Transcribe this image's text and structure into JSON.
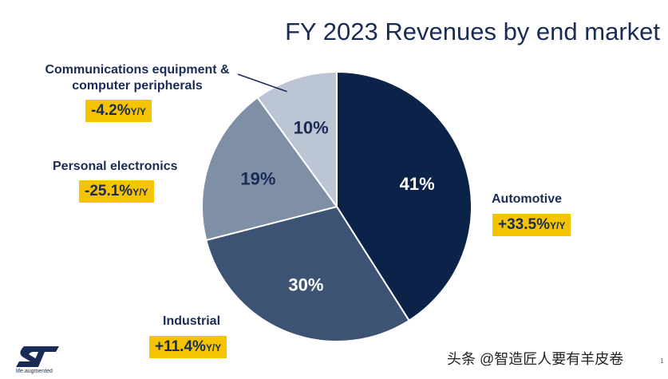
{
  "title": "FY 2023 Revenues by end market",
  "colors": {
    "automotive": "#0b2349",
    "industrial": "#3c5374",
    "personal": "#7f8fa6",
    "comm": "#bcc5d3",
    "badge": "#f5c400",
    "text": "#1a2b55"
  },
  "chart_data": {
    "type": "pie",
    "slices": [
      {
        "name": "Automotive",
        "value": 41,
        "label": "41%",
        "change": "+33.5%",
        "change_unit": "Y/Y"
      },
      {
        "name": "Industrial",
        "value": 30,
        "label": "30%",
        "change": "+11.4%",
        "change_unit": "Y/Y"
      },
      {
        "name": "Personal electronics",
        "value": 19,
        "label": "19%",
        "change": "-25.1%",
        "change_unit": "Y/Y"
      },
      {
        "name": "Communications equipment & computer peripherals",
        "value": 10,
        "label": "10%",
        "change": "-4.2%",
        "change_unit": "Y/Y"
      }
    ],
    "start_angle": "12 o'clock",
    "direction": "clockwise"
  },
  "labels": {
    "comm_line1": "Communications equipment &",
    "comm_line2": "computer peripherals",
    "personal": "Personal electronics",
    "automotive": "Automotive",
    "industrial": "Industrial"
  },
  "footer": {
    "logo_tagline": "life.augmented",
    "watermark": "头条 @智造匠人要有羊皮卷",
    "page_number": "1"
  }
}
